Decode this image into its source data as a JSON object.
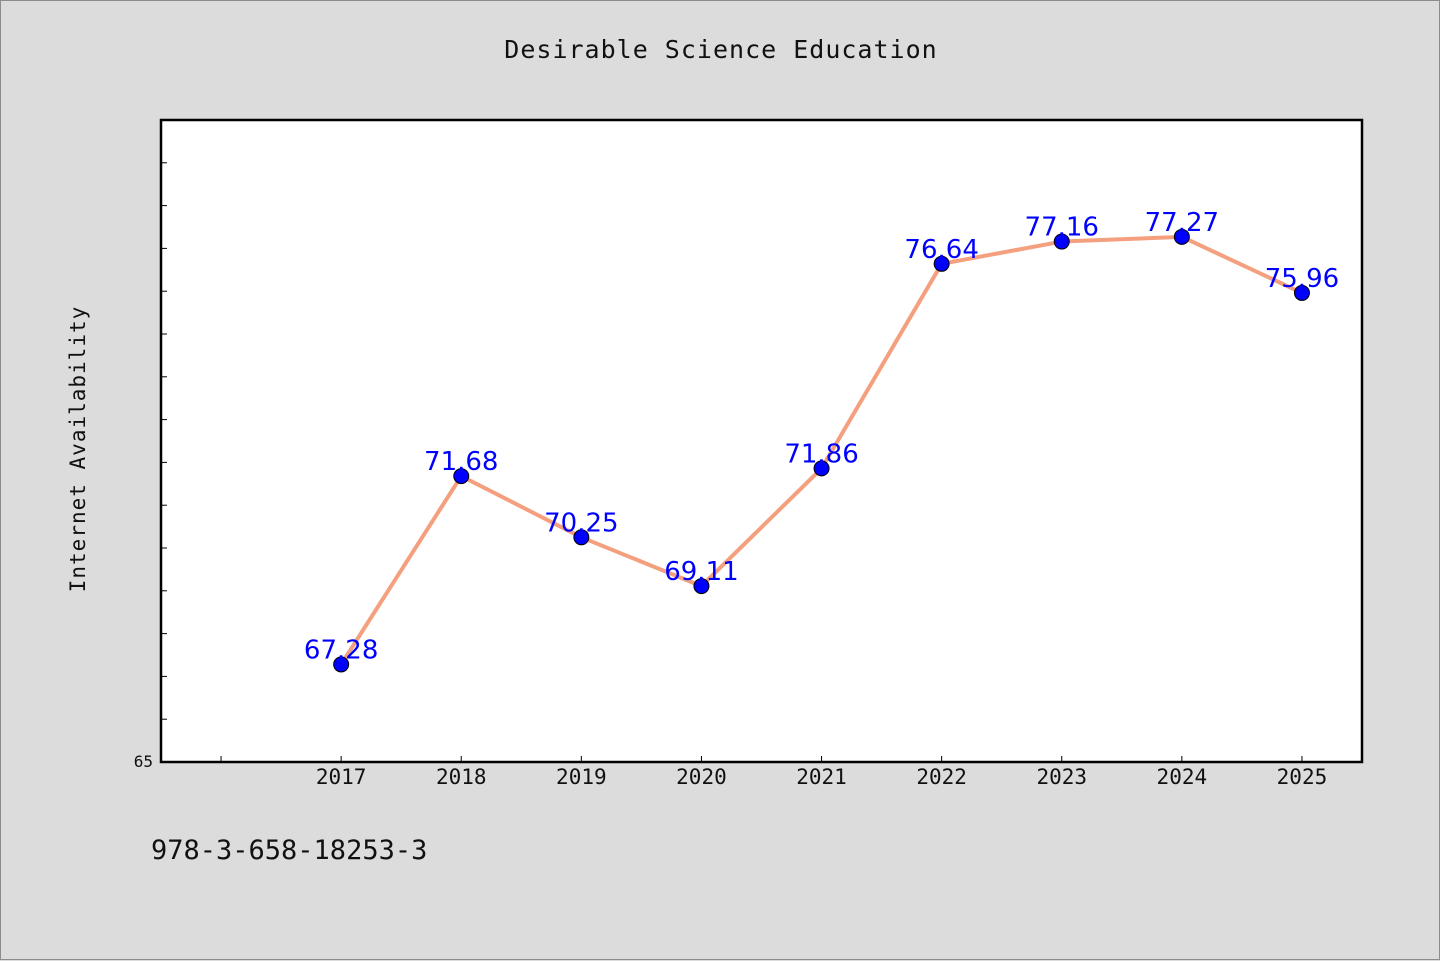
{
  "chart_data": {
    "type": "line",
    "title": "Desirable Science Education",
    "xlabel": "",
    "ylabel": "Internet Availability",
    "categories": [
      "2017",
      "2018",
      "2019",
      "2020",
      "2021",
      "2022",
      "2023",
      "2024",
      "2025"
    ],
    "series": [
      {
        "values": [
          67.28,
          71.68,
          70.25,
          69.11,
          71.86,
          76.64,
          77.16,
          77.27,
          75.96
        ]
      }
    ],
    "value_labels": [
      "67.28",
      "71.68",
      "70.25",
      "69.11",
      "71.86",
      "76.64",
      "77.16",
      "77.27",
      "75.96"
    ],
    "ytick_labels": [
      "65"
    ],
    "ylim": [
      65,
      80
    ],
    "xlim": [
      2015.5,
      2025.5
    ],
    "grid": false,
    "line_color": "#f4a07e",
    "marker_color": "#0000ff",
    "label_color": "#0000ff"
  },
  "footer": {
    "code": "978-3-658-18253-3"
  }
}
